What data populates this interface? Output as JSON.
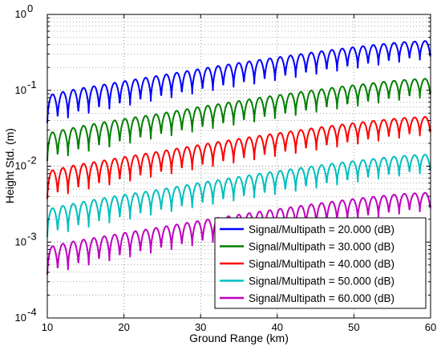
{
  "chart_data": {
    "type": "line",
    "xlabel": "Ground Range (km)",
    "ylabel": "Height Std. (m)",
    "xlim": [
      10,
      60
    ],
    "ylim": [
      0.0001,
      1
    ],
    "yscale": "log",
    "grid": true,
    "legend_position": "lower-right",
    "x_ticks": [
      "10",
      "20",
      "30",
      "40",
      "50",
      "60"
    ],
    "y_ticks": [
      {
        "base": "10",
        "exp": "-4",
        "value": 0.0001
      },
      {
        "base": "10",
        "exp": "-3",
        "value": 0.001
      },
      {
        "base": "10",
        "exp": "-2",
        "value": 0.01
      },
      {
        "base": "10",
        "exp": "-1",
        "value": 0.1
      },
      {
        "base": "10",
        "exp": "0",
        "value": 1
      }
    ],
    "series": [
      {
        "name": "Signal/Multipath = 20.000 (dB)",
        "color": "#0000ff",
        "x": [
          10,
          12,
          14,
          16,
          18,
          20,
          22,
          24,
          26,
          28,
          30,
          32,
          34,
          36,
          38,
          40,
          42,
          44,
          46,
          48,
          50,
          52,
          54,
          56,
          58,
          60
        ],
        "peak": [
          0.085,
          0.095,
          0.105,
          0.113,
          0.122,
          0.132,
          0.142,
          0.153,
          0.165,
          0.178,
          0.192,
          0.207,
          0.222,
          0.238,
          0.255,
          0.272,
          0.29,
          0.31,
          0.33,
          0.35,
          0.37,
          0.39,
          0.41,
          0.43,
          0.44,
          0.45
        ],
        "trough": [
          0.037,
          0.042,
          0.047,
          0.052,
          0.057,
          0.062,
          0.068,
          0.074,
          0.08,
          0.087,
          0.094,
          0.102,
          0.11,
          0.118,
          0.127,
          0.137,
          0.147,
          0.158,
          0.17,
          0.182,
          0.195,
          0.208,
          0.222,
          0.237,
          0.25,
          0.26
        ]
      },
      {
        "name": "Signal/Multipath = 30.000 (dB)",
        "color": "#007f00",
        "x": [
          10,
          12,
          14,
          16,
          18,
          20,
          22,
          24,
          26,
          28,
          30,
          32,
          34,
          36,
          38,
          40,
          42,
          44,
          46,
          48,
          50,
          52,
          54,
          56,
          58,
          60
        ],
        "peak": [
          0.027,
          0.03,
          0.033,
          0.036,
          0.039,
          0.042,
          0.045,
          0.048,
          0.052,
          0.056,
          0.061,
          0.065,
          0.07,
          0.075,
          0.081,
          0.086,
          0.092,
          0.098,
          0.104,
          0.111,
          0.117,
          0.123,
          0.13,
          0.136,
          0.14,
          0.143
        ],
        "trough": [
          0.0117,
          0.0133,
          0.0149,
          0.0164,
          0.018,
          0.0196,
          0.0215,
          0.0234,
          0.0253,
          0.0275,
          0.0297,
          0.0323,
          0.0348,
          0.0373,
          0.0402,
          0.0433,
          0.0465,
          0.05,
          0.0538,
          0.0576,
          0.0617,
          0.0658,
          0.0702,
          0.0749,
          0.079,
          0.0822
        ]
      },
      {
        "name": "Signal/Multipath = 40.000 (dB)",
        "color": "#ff0000",
        "x": [
          10,
          12,
          14,
          16,
          18,
          20,
          22,
          24,
          26,
          28,
          30,
          32,
          34,
          36,
          38,
          40,
          42,
          44,
          46,
          48,
          50,
          52,
          54,
          56,
          58,
          60
        ],
        "peak": [
          0.0085,
          0.0095,
          0.0105,
          0.0113,
          0.0122,
          0.0132,
          0.0142,
          0.0153,
          0.0165,
          0.0178,
          0.0192,
          0.0207,
          0.0222,
          0.0238,
          0.0255,
          0.0272,
          0.029,
          0.031,
          0.033,
          0.035,
          0.037,
          0.039,
          0.041,
          0.043,
          0.044,
          0.045
        ],
        "trough": [
          0.0037,
          0.0042,
          0.0047,
          0.0052,
          0.0057,
          0.0062,
          0.0068,
          0.0074,
          0.008,
          0.0087,
          0.0094,
          0.0102,
          0.011,
          0.0118,
          0.0127,
          0.0137,
          0.0147,
          0.0158,
          0.017,
          0.0182,
          0.0195,
          0.0208,
          0.0222,
          0.0237,
          0.025,
          0.026
        ]
      },
      {
        "name": "Signal/Multipath = 50.000 (dB)",
        "color": "#00bfbf",
        "x": [
          10,
          12,
          14,
          16,
          18,
          20,
          22,
          24,
          26,
          28,
          30,
          32,
          34,
          36,
          38,
          40,
          42,
          44,
          46,
          48,
          50,
          52,
          54,
          56,
          58,
          60
        ],
        "peak": [
          0.0027,
          0.003,
          0.0033,
          0.0036,
          0.0039,
          0.0042,
          0.0045,
          0.0048,
          0.0052,
          0.0056,
          0.0061,
          0.0065,
          0.007,
          0.0075,
          0.0081,
          0.0086,
          0.0092,
          0.0098,
          0.0104,
          0.0111,
          0.0117,
          0.0123,
          0.013,
          0.0136,
          0.014,
          0.0143
        ],
        "trough": [
          0.00117,
          0.00133,
          0.00149,
          0.00164,
          0.0018,
          0.00196,
          0.00215,
          0.00234,
          0.00253,
          0.00275,
          0.00297,
          0.00323,
          0.00348,
          0.00373,
          0.00402,
          0.00433,
          0.00465,
          0.005,
          0.00538,
          0.00576,
          0.00617,
          0.00658,
          0.00702,
          0.00749,
          0.0079,
          0.00822
        ]
      },
      {
        "name": "Signal/Multipath = 60.000 (dB)",
        "color": "#bf00bf",
        "x": [
          10,
          12,
          14,
          16,
          18,
          20,
          22,
          24,
          26,
          28,
          30,
          32,
          34,
          36,
          38,
          40,
          42,
          44,
          46,
          48,
          50,
          52,
          54,
          56,
          58,
          60
        ],
        "peak": [
          0.00085,
          0.00095,
          0.00105,
          0.00113,
          0.00122,
          0.00132,
          0.00142,
          0.00153,
          0.00165,
          0.00178,
          0.00192,
          0.00207,
          0.00222,
          0.00238,
          0.00255,
          0.00272,
          0.0029,
          0.0031,
          0.0033,
          0.0035,
          0.0037,
          0.0039,
          0.0041,
          0.0043,
          0.0044,
          0.0045
        ],
        "trough": [
          0.00037,
          0.00042,
          0.00047,
          0.00052,
          0.00057,
          0.00062,
          0.00068,
          0.00074,
          0.0008,
          0.00087,
          0.00094,
          0.00102,
          0.0011,
          0.00118,
          0.00127,
          0.00137,
          0.00147,
          0.00158,
          0.0017,
          0.00182,
          0.00195,
          0.00208,
          0.00222,
          0.00237,
          0.0025,
          0.0026
        ]
      }
    ],
    "oscillation_period_km": 1.35
  }
}
